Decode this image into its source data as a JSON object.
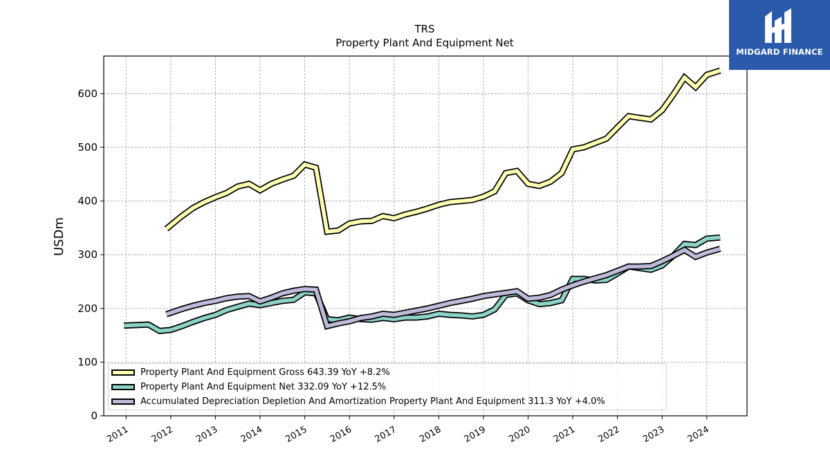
{
  "logo": {
    "text": "MIDGARD FINANCE"
  },
  "chart_data": {
    "type": "line",
    "title": "TRS",
    "subtitle": "Property Plant And Equipment Net",
    "ylabel": "USDm",
    "xlabel": "",
    "ylim": [
      0,
      670
    ],
    "xlim": [
      2010.5,
      2024.9
    ],
    "yticks": [
      0,
      100,
      200,
      300,
      400,
      500,
      600
    ],
    "xticks": [
      "2011",
      "2012",
      "2013",
      "2014",
      "2015",
      "2016",
      "2017",
      "2018",
      "2019",
      "2020",
      "2021",
      "2022",
      "2023",
      "2024"
    ],
    "grid": true,
    "legend_position": "lower-left",
    "series": [
      {
        "name": "Property Plant And Equipment Gross",
        "legend_label": "Property Plant And Equipment Gross  643.39 YoY +8.2%",
        "color": "#ffffb3",
        "points": [
          [
            2011.9,
            348
          ],
          [
            2012.25,
            372
          ],
          [
            2012.5,
            387
          ],
          [
            2012.75,
            398
          ],
          [
            2013.0,
            407
          ],
          [
            2013.25,
            415
          ],
          [
            2013.5,
            427
          ],
          [
            2013.75,
            432
          ],
          [
            2014.0,
            420
          ],
          [
            2014.25,
            432
          ],
          [
            2014.5,
            440
          ],
          [
            2014.75,
            447
          ],
          [
            2015.0,
            468
          ],
          [
            2015.25,
            462
          ],
          [
            2015.5,
            343
          ],
          [
            2015.75,
            345
          ],
          [
            2016.0,
            358
          ],
          [
            2016.25,
            362
          ],
          [
            2016.5,
            363
          ],
          [
            2016.75,
            372
          ],
          [
            2017.0,
            368
          ],
          [
            2017.25,
            375
          ],
          [
            2017.5,
            380
          ],
          [
            2017.75,
            386
          ],
          [
            2018.0,
            393
          ],
          [
            2018.25,
            398
          ],
          [
            2018.5,
            400
          ],
          [
            2018.75,
            402
          ],
          [
            2019.0,
            408
          ],
          [
            2019.25,
            418
          ],
          [
            2019.5,
            452
          ],
          [
            2019.75,
            456
          ],
          [
            2020.0,
            432
          ],
          [
            2020.25,
            428
          ],
          [
            2020.5,
            436
          ],
          [
            2020.75,
            452
          ],
          [
            2021.0,
            496
          ],
          [
            2021.25,
            500
          ],
          [
            2021.5,
            508
          ],
          [
            2021.75,
            516
          ],
          [
            2022.0,
            537
          ],
          [
            2022.25,
            558
          ],
          [
            2022.5,
            555
          ],
          [
            2022.75,
            552
          ],
          [
            2023.0,
            569
          ],
          [
            2023.25,
            598
          ],
          [
            2023.5,
            630
          ],
          [
            2023.75,
            612
          ],
          [
            2024.0,
            635
          ],
          [
            2024.3,
            643
          ]
        ]
      },
      {
        "name": "Property Plant And Equipment Net",
        "legend_label": "Property Plant And Equipment Net  332.09 YoY +12.5%",
        "color": "#8dd3c7",
        "points": [
          [
            2010.95,
            168
          ],
          [
            2011.5,
            170
          ],
          [
            2011.75,
            158
          ],
          [
            2012.0,
            160
          ],
          [
            2012.25,
            167
          ],
          [
            2012.5,
            175
          ],
          [
            2012.75,
            182
          ],
          [
            2013.0,
            188
          ],
          [
            2013.25,
            197
          ],
          [
            2013.5,
            203
          ],
          [
            2013.75,
            209
          ],
          [
            2014.0,
            206
          ],
          [
            2014.25,
            210
          ],
          [
            2014.5,
            214
          ],
          [
            2014.75,
            216
          ],
          [
            2015.0,
            230
          ],
          [
            2015.25,
            228
          ],
          [
            2015.5,
            180
          ],
          [
            2015.75,
            178
          ],
          [
            2016.0,
            183
          ],
          [
            2016.25,
            180
          ],
          [
            2016.5,
            179
          ],
          [
            2016.75,
            182
          ],
          [
            2017.0,
            180
          ],
          [
            2017.25,
            183
          ],
          [
            2017.5,
            183
          ],
          [
            2017.75,
            185
          ],
          [
            2018.0,
            190
          ],
          [
            2018.25,
            188
          ],
          [
            2018.5,
            187
          ],
          [
            2018.75,
            185
          ],
          [
            2019.0,
            188
          ],
          [
            2019.25,
            198
          ],
          [
            2019.5,
            225
          ],
          [
            2019.75,
            228
          ],
          [
            2020.0,
            215
          ],
          [
            2020.25,
            208
          ],
          [
            2020.5,
            210
          ],
          [
            2020.75,
            215
          ],
          [
            2021.0,
            255
          ],
          [
            2021.25,
            255
          ],
          [
            2021.5,
            252
          ],
          [
            2021.75,
            253
          ],
          [
            2022.0,
            265
          ],
          [
            2022.25,
            278
          ],
          [
            2022.5,
            275
          ],
          [
            2022.75,
            272
          ],
          [
            2023.0,
            280
          ],
          [
            2023.25,
            298
          ],
          [
            2023.5,
            320
          ],
          [
            2023.75,
            318
          ],
          [
            2024.0,
            330
          ],
          [
            2024.3,
            332
          ]
        ]
      },
      {
        "name": "Accumulated Depreciation Depletion And Amortization Property Plant And Equipment",
        "legend_label": "Accumulated Depreciation Depletion And Amortization Property Plant And Equipment  311.3 YoY +4.0%",
        "color": "#bebada",
        "points": [
          [
            2011.9,
            189
          ],
          [
            2012.25,
            199
          ],
          [
            2012.5,
            205
          ],
          [
            2012.75,
            210
          ],
          [
            2013.0,
            214
          ],
          [
            2013.25,
            219
          ],
          [
            2013.5,
            222
          ],
          [
            2013.75,
            223
          ],
          [
            2014.0,
            213
          ],
          [
            2014.25,
            220
          ],
          [
            2014.5,
            228
          ],
          [
            2014.75,
            233
          ],
          [
            2015.0,
            236
          ],
          [
            2015.25,
            235
          ],
          [
            2015.5,
            167
          ],
          [
            2015.75,
            172
          ],
          [
            2016.0,
            176
          ],
          [
            2016.25,
            182
          ],
          [
            2016.5,
            185
          ],
          [
            2016.75,
            190
          ],
          [
            2017.0,
            188
          ],
          [
            2017.25,
            192
          ],
          [
            2017.5,
            196
          ],
          [
            2017.75,
            200
          ],
          [
            2018.0,
            205
          ],
          [
            2018.25,
            210
          ],
          [
            2018.5,
            214
          ],
          [
            2018.75,
            218
          ],
          [
            2019.0,
            223
          ],
          [
            2019.25,
            226
          ],
          [
            2019.5,
            229
          ],
          [
            2019.75,
            232
          ],
          [
            2020.0,
            218
          ],
          [
            2020.25,
            220
          ],
          [
            2020.5,
            225
          ],
          [
            2020.75,
            235
          ],
          [
            2021.0,
            243
          ],
          [
            2021.25,
            250
          ],
          [
            2021.5,
            256
          ],
          [
            2021.75,
            262
          ],
          [
            2022.0,
            270
          ],
          [
            2022.25,
            278
          ],
          [
            2022.5,
            278
          ],
          [
            2022.75,
            279
          ],
          [
            2023.0,
            288
          ],
          [
            2023.25,
            298
          ],
          [
            2023.5,
            309
          ],
          [
            2023.75,
            296
          ],
          [
            2024.0,
            304
          ],
          [
            2024.3,
            311
          ]
        ]
      }
    ]
  }
}
